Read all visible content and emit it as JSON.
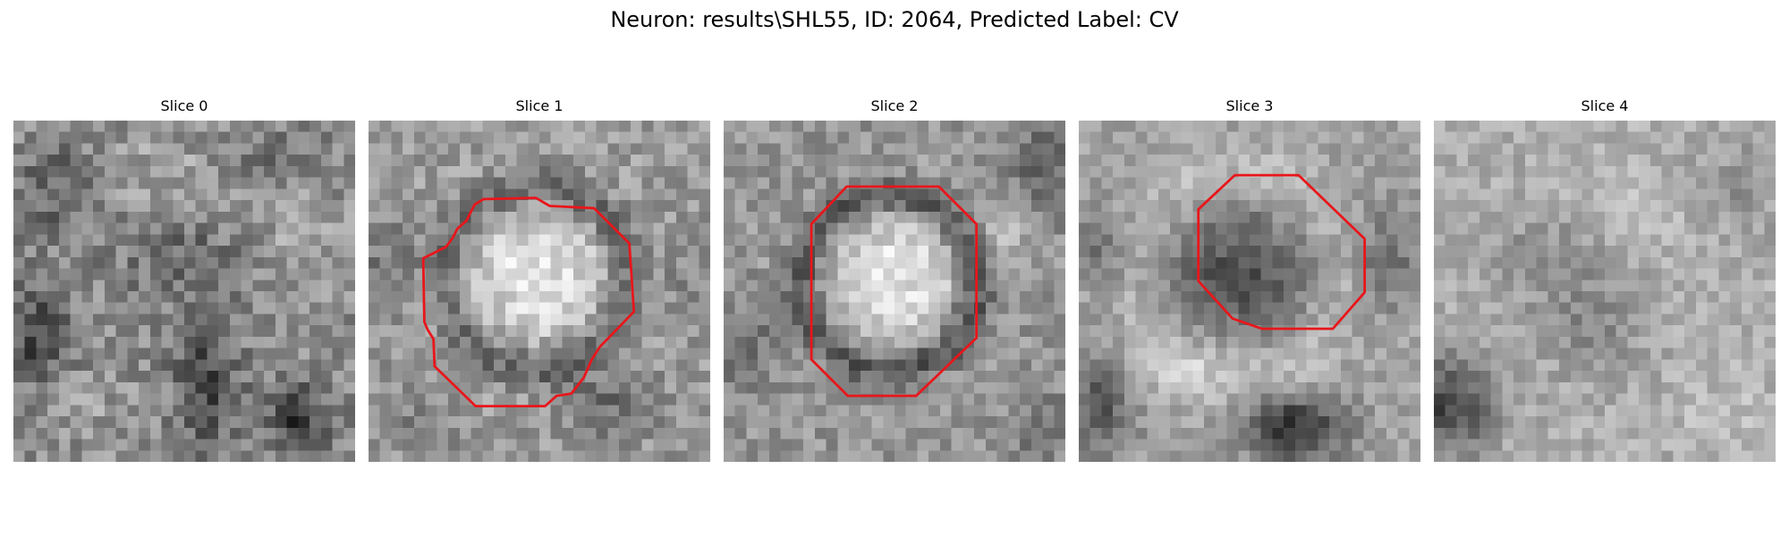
{
  "figure": {
    "title": "Neuron: results\\SHL55, ID: 2064, Predicted Label: CV"
  },
  "panels": [
    {
      "title": "Slice 0",
      "has_contour": false
    },
    {
      "title": "Slice 1",
      "has_contour": true
    },
    {
      "title": "Slice 2",
      "has_contour": true
    },
    {
      "title": "Slice 3",
      "has_contour": true
    },
    {
      "title": "Slice 4",
      "has_contour": false
    }
  ],
  "colors": {
    "contour": "#e8161b",
    "colormap": "grayscale"
  }
}
